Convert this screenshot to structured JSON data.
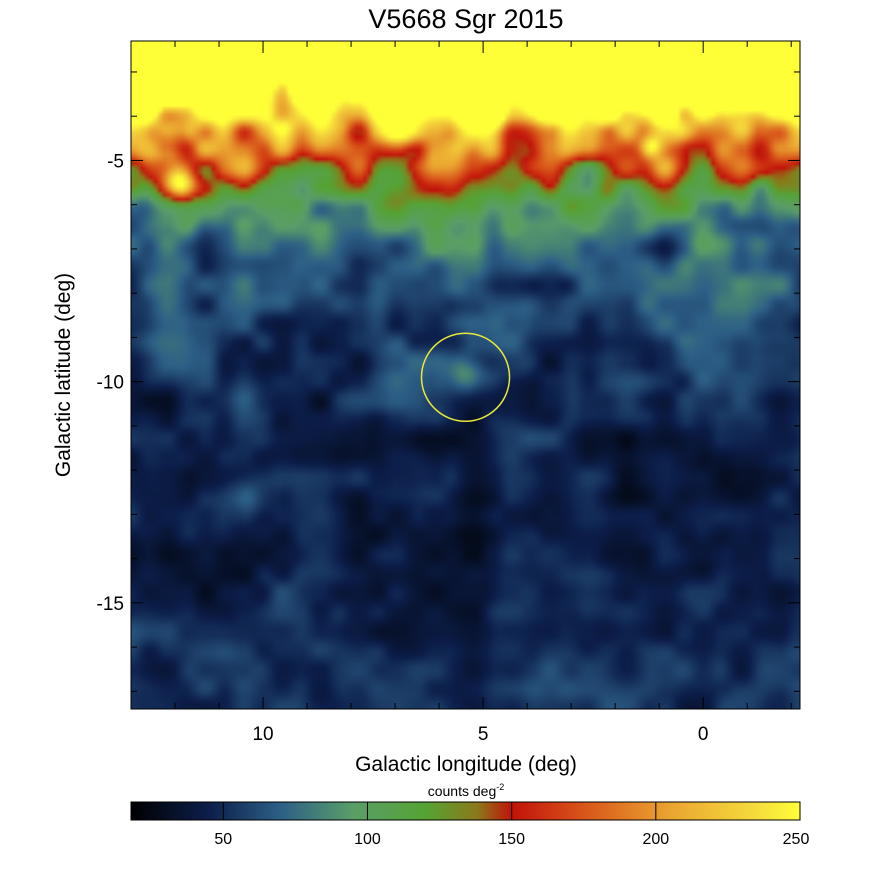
{
  "chart_data": {
    "type": "heatmap",
    "title": "V5668 Sgr 2015",
    "xlabel": "Galactic longitude (deg)",
    "ylabel": "Galactic latitude (deg)",
    "xlim": [
      13.0,
      -2.2
    ],
    "ylim": [
      -17.4,
      -2.3
    ],
    "x_ticks": [
      10,
      5,
      0
    ],
    "x_tick_labels": [
      "10",
      "5",
      "0"
    ],
    "y_ticks": [
      -5,
      -10,
      -15
    ],
    "y_tick_labels": [
      "-5",
      "-10",
      "-15"
    ],
    "colorbar": {
      "label": "counts deg",
      "label_superscript": "-2",
      "range": [
        18,
        250
      ],
      "ticks": [
        50,
        100,
        150,
        200,
        250
      ],
      "tick_labels": [
        "50",
        "100",
        "150",
        "200",
        "250"
      ],
      "colormap_stops": [
        {
          "value": 18,
          "color": "#000000"
        },
        {
          "value": 45,
          "color": "#0c1e4a"
        },
        {
          "value": 70,
          "color": "#2d5f86"
        },
        {
          "value": 95,
          "color": "#5a9e68"
        },
        {
          "value": 120,
          "color": "#55a335"
        },
        {
          "value": 138,
          "color": "#8a7a1a"
        },
        {
          "value": 150,
          "color": "#c2120a"
        },
        {
          "value": 175,
          "color": "#d8551a"
        },
        {
          "value": 205,
          "color": "#eaa531"
        },
        {
          "value": 235,
          "color": "#f6dc3c"
        },
        {
          "value": 250,
          "color": "#ffff38"
        }
      ]
    },
    "marker": {
      "type": "circle",
      "center_l": 5.4,
      "center_b": -9.9,
      "radius_deg": 1.0,
      "color": "#e8e83a"
    },
    "sources": [
      {
        "l": 5.4,
        "b": -9.85,
        "amp": 40,
        "sigma": 0.3
      },
      {
        "l": 11.9,
        "b": -5.5,
        "amp": 110,
        "sigma": 0.25
      },
      {
        "l": 1.2,
        "b": -4.7,
        "amp": 80,
        "sigma": 0.18
      },
      {
        "l": 4.8,
        "b": -4.0,
        "amp": 60,
        "sigma": 0.2
      },
      {
        "l": 10.3,
        "b": -12.6,
        "amp": 25,
        "sigma": 0.35
      }
    ]
  }
}
